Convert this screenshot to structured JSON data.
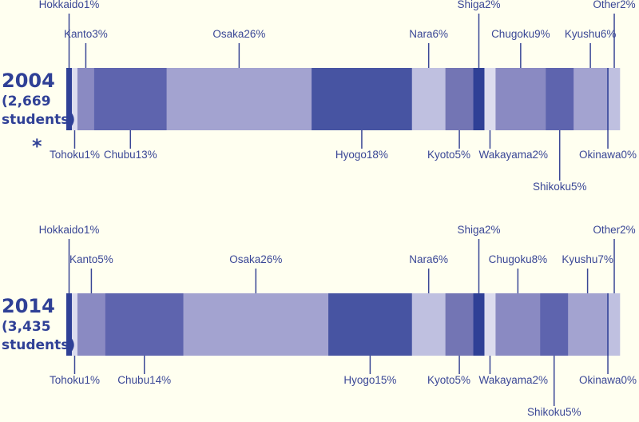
{
  "chart_data": {
    "type": "bar",
    "orientation": "horizontal-stacked",
    "unit": "%",
    "colors": {
      "Hokkaido": "#2f4096",
      "Tohoku": "#dcdcee",
      "Kanto": "#8a8ac2",
      "Chubu": "#5e64ae",
      "Osaka": "#a3a3d0",
      "Hyogo": "#4754a2",
      "Nara": "#bfc0e0",
      "Kyoto": "#7375b4",
      "Shiga": "#2f4096",
      "Wakayama": "#dcdcee",
      "Chugoku": "#8a8ac2",
      "Shikoku": "#5e64ae",
      "Kyushu": "#a3a3d0",
      "Okinawa": "#4754a2",
      "Other": "#bfc0e0"
    },
    "categories": [
      "Hokkaido",
      "Tohoku",
      "Kanto",
      "Chubu",
      "Osaka",
      "Hyogo",
      "Nara",
      "Kyoto",
      "Shiga",
      "Wakayama",
      "Chugoku",
      "Shikoku",
      "Kyushu",
      "Okinawa",
      "Other"
    ],
    "series": [
      {
        "name": "2004",
        "year_label": "2004",
        "count_label": "(2,669",
        "students_label": "students)",
        "note_mark": "*",
        "values": [
          1,
          1,
          3,
          13,
          26,
          18,
          6,
          5,
          2,
          2,
          9,
          5,
          6,
          0,
          2
        ],
        "labels": [
          "Hokkaido1%",
          "Tohoku1%",
          "Kanto3%",
          "Chubu13%",
          "Osaka26%",
          "Hyogo18%",
          "Nara6%",
          "Kyoto5%",
          "Shiga2%",
          "Wakayama2%",
          "Chugoku9%",
          "Shikoku5%",
          "Kyushu6%",
          "Okinawa0%",
          "Other2%"
        ]
      },
      {
        "name": "2014",
        "year_label": "2014",
        "count_label": "(3,435",
        "students_label": "students)",
        "values": [
          1,
          1,
          5,
          14,
          26,
          15,
          6,
          5,
          2,
          2,
          8,
          5,
          7,
          0,
          2
        ],
        "labels": [
          "Hokkaido1%",
          "Tohoku1%",
          "Kanto5%",
          "Chubu14%",
          "Osaka26%",
          "Hyogo15%",
          "Nara6%",
          "Kyoto5%",
          "Shiga2%",
          "Wakayama2%",
          "Chugoku8%",
          "Shikoku5%",
          "Kyushu7%",
          "Okinawa0%",
          "Other2%"
        ]
      }
    ]
  }
}
